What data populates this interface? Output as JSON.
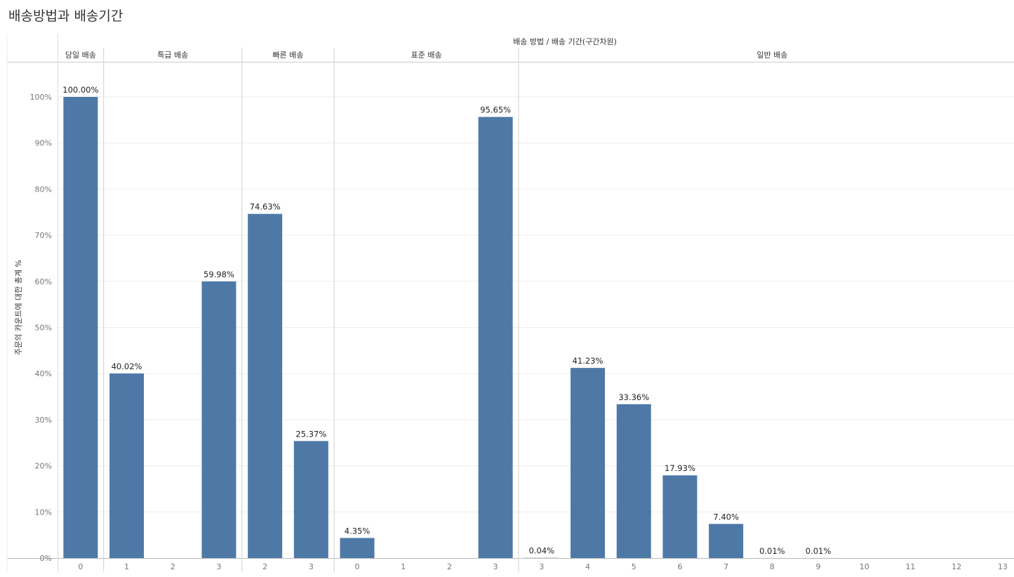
{
  "title": "배송방법과 배송기간",
  "chart_data": {
    "type": "bar",
    "title": "배송방법과 배송기간",
    "column_header": "배송 방법 / 배송 기간(구간차원)",
    "ylabel": "주문의 카운트에 대한 총계 %",
    "ylim": [
      0,
      100
    ],
    "yticks": [
      "0%",
      "10%",
      "20%",
      "30%",
      "40%",
      "50%",
      "60%",
      "70%",
      "80%",
      "90%",
      "100%"
    ],
    "groups": [
      {
        "name": "당일 배송",
        "categories": [
          "0"
        ],
        "values": [
          100.0
        ],
        "labels": [
          "100.00%"
        ]
      },
      {
        "name": "특급 배송",
        "categories": [
          "1",
          "2",
          "3"
        ],
        "values": [
          40.02,
          null,
          59.98
        ],
        "labels": [
          "40.02%",
          "",
          "59.98%"
        ]
      },
      {
        "name": "빠른 배송",
        "categories": [
          "2",
          "3"
        ],
        "values": [
          74.63,
          25.37
        ],
        "labels": [
          "74.63%",
          "25.37%"
        ]
      },
      {
        "name": "표준 배송",
        "categories": [
          "0",
          "1",
          "2",
          "3"
        ],
        "values": [
          4.35,
          null,
          null,
          95.65
        ],
        "labels": [
          "4.35%",
          "",
          "",
          "95.65%"
        ]
      },
      {
        "name": "일반 배송",
        "categories": [
          "3",
          "4",
          "5",
          "6",
          "7",
          "8",
          "9",
          "10",
          "11",
          "12",
          "13"
        ],
        "values": [
          0.04,
          41.23,
          33.36,
          17.93,
          7.4,
          0.01,
          0.01,
          null,
          null,
          null,
          null
        ],
        "labels": [
          "0.04%",
          "41.23%",
          "33.36%",
          "17.93%",
          "7.40%",
          "0.01%",
          "0.01%",
          "",
          "",
          "",
          ""
        ]
      }
    ],
    "bar_color": "#4e79a7",
    "grid": true
  }
}
